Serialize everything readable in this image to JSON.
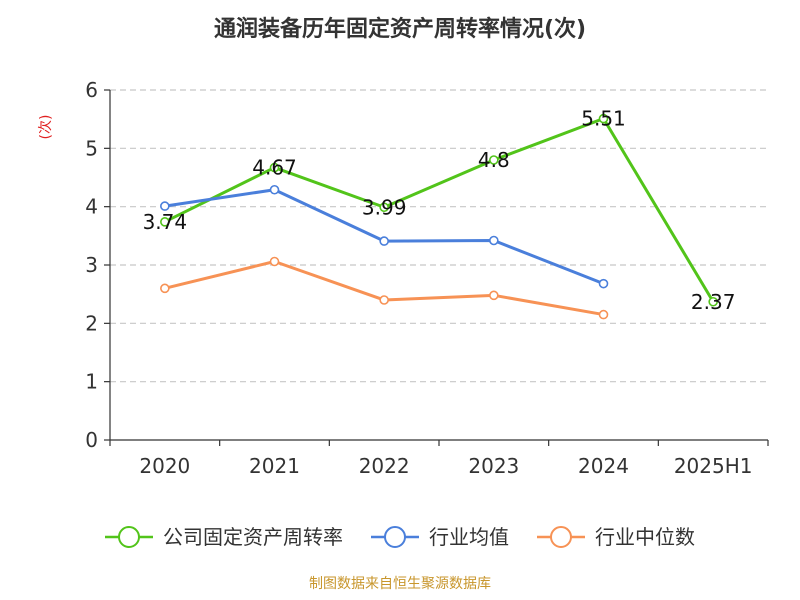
{
  "chart_data": {
    "type": "line",
    "title": "通润装备历年固定资产周转率情况(次)",
    "ylabel": "(次)",
    "xlabel": "",
    "categories": [
      "2020",
      "2021",
      "2022",
      "2023",
      "2024",
      "2025H1"
    ],
    "ylim": [
      0,
      6
    ],
    "yticks": [
      0,
      1,
      2,
      3,
      4,
      5,
      6
    ],
    "grid": true,
    "legend_position": "bottom",
    "series": [
      {
        "name": "公司固定资产周转率",
        "color": "#52c41a",
        "values": [
          3.74,
          4.67,
          3.99,
          4.8,
          5.51,
          2.37
        ],
        "labels": [
          "3.74",
          "4.67",
          "3.99",
          "4.8",
          "5.51",
          "2.37"
        ]
      },
      {
        "name": "行业均值",
        "color": "#4a7fdb",
        "values": [
          4.01,
          4.29,
          3.41,
          3.42,
          2.68,
          null
        ]
      },
      {
        "name": "行业中位数",
        "color": "#f79255",
        "values": [
          2.6,
          3.06,
          2.4,
          2.48,
          2.15,
          null
        ]
      }
    ]
  },
  "source": "制图数据来自恒生聚源数据库"
}
